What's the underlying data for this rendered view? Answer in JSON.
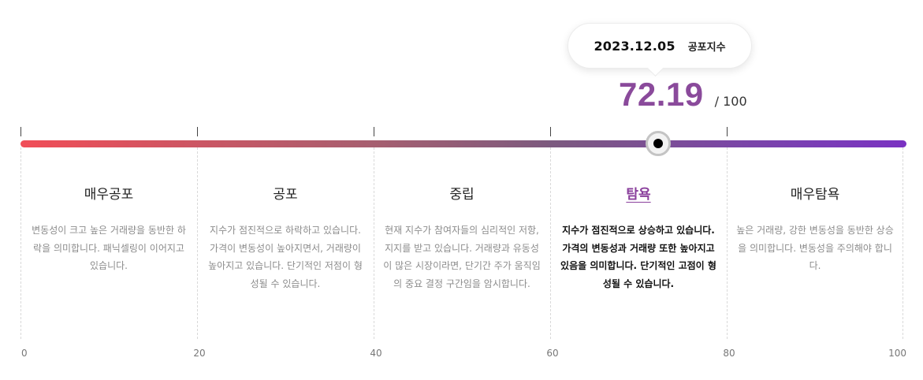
{
  "tooltip": {
    "date": "2023.12.05",
    "label": "공포지수"
  },
  "score": {
    "value": "72.19",
    "max": "/ 100",
    "numeric": 72.19
  },
  "zones": [
    {
      "title": "매우공포",
      "description": "변동성이 크고 높은 거래량을 동반한 하락을 의미합니다. 패닉셀링이 이어지고 있습니다."
    },
    {
      "title": "공포",
      "description": "지수가 점진적으로 하락하고 있습니다. 가격이 변동성이 높아지면서, 거래량이 높아지고 있습니다. 단기적인 저점이 형성될 수 있습니다."
    },
    {
      "title": "중립",
      "description": "현재 지수가 참여자들의 심리적인 저항, 지지를 받고 있습니다. 거래량과 유동성이 많은 시장이라면, 단기간 주가 움직임의 중요 결정 구간임을 암시합니다."
    },
    {
      "title": "탐욕",
      "description": "지수가 점진적으로 상승하고 있습니다. 가격의 변동성과 거래량 또한 높아지고 있음을 의미합니다. 단기적인 고점이 형성될 수 있습니다."
    },
    {
      "title": "매우탐욕",
      "description": "높은 거래량, 강한 변동성을 동반한 상승을 의미합니다. 변동성을 주의해야 합니다."
    }
  ],
  "active_zone": "탐욕",
  "axis": {
    "labels": [
      "0",
      "20",
      "40",
      "60",
      "80",
      "100"
    ]
  },
  "colors": {
    "accent": "#8a4a9b",
    "gradient_start": "#f14d57",
    "gradient_end": "#7a32c2"
  }
}
